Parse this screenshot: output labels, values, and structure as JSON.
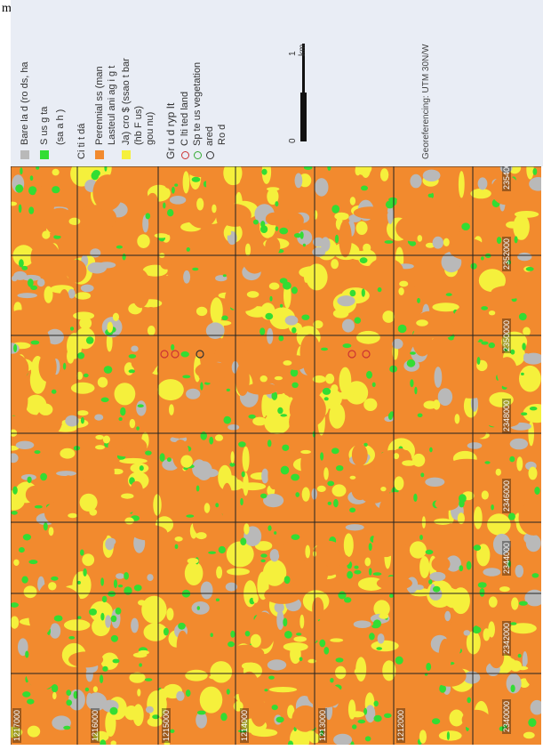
{
  "caption": "map.",
  "legend": {
    "items": [
      {
        "label": "Bare la d (ro ds, ha",
        "type": "swatch",
        "color": "#b9b9b9"
      },
      {
        "label": "S        us  g  ta",
        "type": "swatch",
        "color": "#33dd33"
      },
      {
        "label": "(sa a   h )",
        "type": "text"
      },
      {
        "label": "Ci ti t  dá",
        "type": "text"
      },
      {
        "label": "Perennial  ss (man",
        "type": "swatch",
        "color": "#f28a2e"
      },
      {
        "label": "Lasteul ani ag   i  g t",
        "type": "text"
      },
      {
        "label": "Ja) cro $ (ssao     t  bar",
        "type": "swatch",
        "color": "#f5f03c"
      },
      {
        "label": "(hb F  us)",
        "type": "text"
      },
      {
        "label": "gou  nu)",
        "type": "text"
      },
      {
        "label": "Gr u  d ryp       It",
        "type": "text"
      },
      {
        "label": "C   lti ted  land",
        "type": "circle",
        "color": "#cc3333"
      },
      {
        "label": "Sp   te    us  vegetation",
        "type": "circle",
        "color": "#33aa33"
      },
      {
        "label": "ared",
        "type": "circle",
        "color": "#333333"
      },
      {
        "label": "Ro d",
        "type": "text"
      }
    ],
    "scale": {
      "start": "0",
      "end": "1 km"
    },
    "georef": "Georeferencing: UTM 30N/W"
  },
  "grid": {
    "x_labels": [
      "2340000",
      "2342000",
      "2344000",
      "2346000",
      "2348000",
      "2350000",
      "2352000",
      "2354000"
    ],
    "y_labels": [
      "1217000",
      "1216000",
      "1215000",
      "1214000",
      "1213000",
      "1212000"
    ]
  },
  "colors": {
    "perennial": "#f28a2e",
    "crops": "#f5f03c",
    "vegetation": "#33dd33",
    "bare": "#b9b9b9",
    "grid": "#222222"
  }
}
